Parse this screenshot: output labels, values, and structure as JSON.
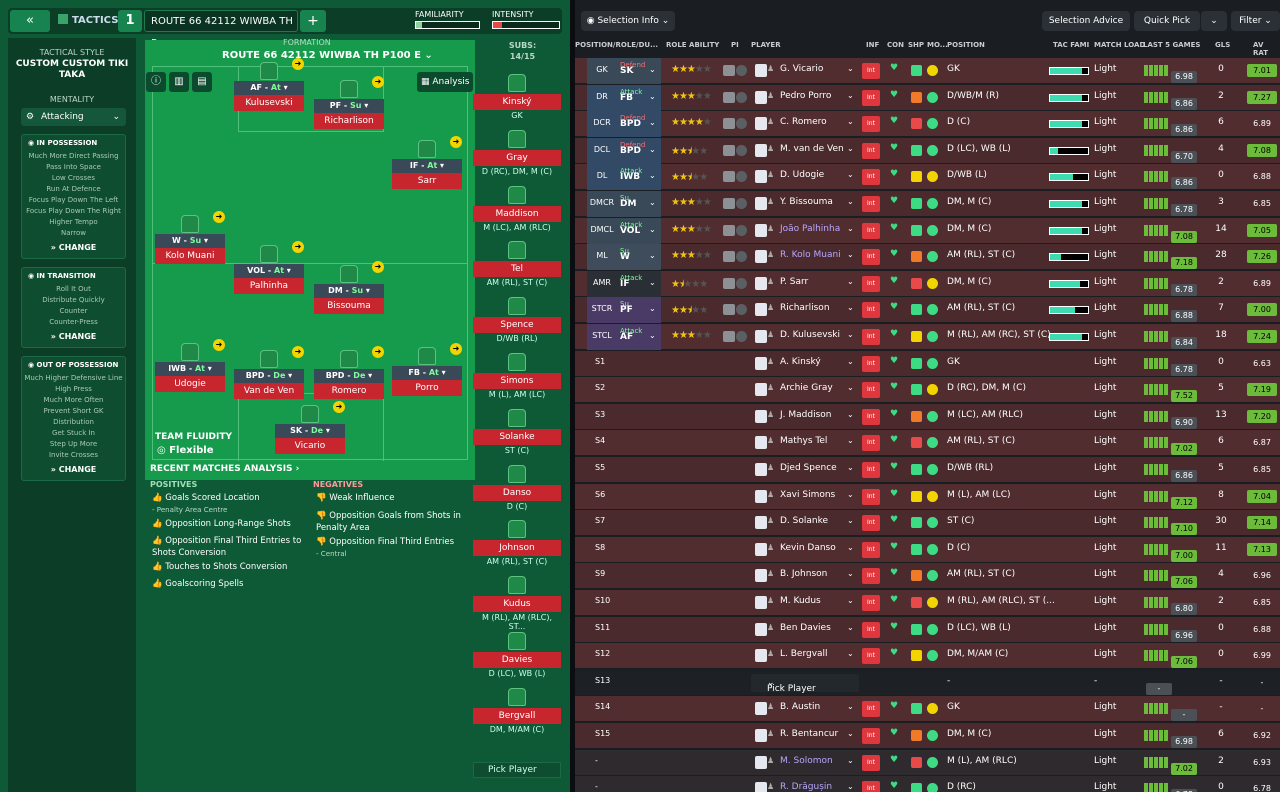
{
  "topbar": {
    "back_icon": "«",
    "tactics_label": "TACTICS",
    "tactic_number": "1",
    "tactic_name": "ROUTE 66 42112 WIWBA TH P...",
    "add_icon": "+",
    "familiarity_label": "FAMILIARITY",
    "familiarity_value": 0.1,
    "intensity_label": "INTENSITY",
    "intensity_value": 0.14
  },
  "sidebar": {
    "style_label": "TACTICAL STYLE",
    "style_name": "CUSTOM CUSTOM TIKI TAKA",
    "mentality_label": "MENTALITY",
    "mentality_value": "Attacking",
    "in_possession": {
      "title": "IN POSSESSION",
      "items": [
        "Much More Direct Passing",
        "Pass Into Space",
        "Low Crosses",
        "Run At Defence",
        "Focus Play Down The Left",
        "Focus Play Down The Right",
        "Higher Tempo",
        "Narrow"
      ],
      "change": "CHANGE"
    },
    "in_transition": {
      "title": "IN TRANSITION",
      "items": [
        "Roll It Out",
        "Distribute Quickly",
        "Counter",
        "Counter-Press"
      ],
      "change": "CHANGE"
    },
    "out_possession": {
      "title": "OUT OF POSSESSION",
      "items": [
        "Much Higher Defensive Line",
        "High Press",
        "Much More Often",
        "Prevent Short GK Distribution",
        "Get Stuck In",
        "Step Up More",
        "Invite Crosses"
      ],
      "change": "CHANGE"
    }
  },
  "formation": {
    "label": "FORMATION",
    "name": "ROUTE 66 42112 WIWBA TH P100 E",
    "analysis": "Analysis",
    "fluidity_label": "TEAM FLUIDITY",
    "fluidity_value": "Flexible"
  },
  "players": [
    {
      "role": "AF",
      "duty": "At",
      "name": "Kulusevski"
    },
    {
      "role": "PF",
      "duty": "Su",
      "name": "Richarlison"
    },
    {
      "role": "IF",
      "duty": "At",
      "name": "Sarr"
    },
    {
      "role": "W",
      "duty": "Su",
      "name": "Kolo Muani"
    },
    {
      "role": "VOL",
      "duty": "At",
      "name": "Palhinha"
    },
    {
      "role": "DM",
      "duty": "Su",
      "name": "Bissouma"
    },
    {
      "role": "IWB",
      "duty": "At",
      "name": "Udogie"
    },
    {
      "role": "BPD",
      "duty": "De",
      "name": "Van de Ven"
    },
    {
      "role": "BPD",
      "duty": "De",
      "name": "Romero"
    },
    {
      "role": "FB",
      "duty": "At",
      "name": "Porro"
    },
    {
      "role": "SK",
      "duty": "De",
      "name": "Vicario"
    }
  ],
  "subs": {
    "label": "SUBS:",
    "count": "14/15",
    "pick": "Pick Player",
    "list": [
      {
        "name": "Kinský",
        "pos": "GK"
      },
      {
        "name": "Gray",
        "pos": "D (RC), DM, M (C)"
      },
      {
        "name": "Maddison",
        "pos": "M (LC), AM (RLC)"
      },
      {
        "name": "Tel",
        "pos": "AM (RL), ST (C)"
      },
      {
        "name": "Spence",
        "pos": "D/WB (RL)"
      },
      {
        "name": "Simons",
        "pos": "M (L), AM (LC)"
      },
      {
        "name": "Solanke",
        "pos": "ST (C)"
      },
      {
        "name": "Danso",
        "pos": "D (C)"
      },
      {
        "name": "Johnson",
        "pos": "AM (RL), ST (C)"
      },
      {
        "name": "Kudus",
        "pos": "M (RL), AM (RLC), ST..."
      },
      {
        "name": "Davies",
        "pos": "D (LC), WB (L)"
      },
      {
        "name": "Bergvall",
        "pos": "DM, M/AM (C)"
      }
    ]
  },
  "analysis": {
    "title": "RECENT MATCHES ANALYSIS",
    "positives_label": "POSITIVES",
    "positives": [
      {
        "t": "Goals Scored Location",
        "s": "- Penalty Area Centre"
      },
      {
        "t": "Opposition Long-Range Shots",
        "s": ""
      },
      {
        "t": "Opposition Final Third Entries to Shots Conversion",
        "s": ""
      },
      {
        "t": "Touches to Shots Conversion",
        "s": ""
      },
      {
        "t": "Goalscoring Spells",
        "s": ""
      }
    ],
    "negatives_label": "NEGATIVES",
    "negatives": [
      {
        "t": "Weak Influence",
        "s": ""
      },
      {
        "t": "Opposition Goals from Shots in Penalty Area",
        "s": ""
      },
      {
        "t": "Opposition Final Third Entries",
        "s": "- Central"
      }
    ]
  },
  "right": {
    "selection_info": "Selection Info",
    "selection_advice": "Selection Advice",
    "quick_pick": "Quick Pick",
    "filter": "Filter"
  },
  "headers": [
    "POSITION/ROLE/DU...",
    "ROLE ABILITY",
    "PI",
    "PLAYER",
    "INF",
    "CON",
    "SHP",
    "MO...",
    "POSITION",
    "TAC FAMI",
    "MATCH LOAD",
    "LAST 5 GAMES",
    "GLS",
    "AV RAT"
  ],
  "rows": [
    {
      "slot": "GK",
      "role": "SK",
      "duty": "Defend",
      "stars": 3,
      "player": "G. Vicario",
      "pos": "GK",
      "load": "Light",
      "rating": "6.98",
      "gls": "0",
      "avr": "7.01",
      "g": false,
      "ag": true,
      "fam": 0.85
    },
    {
      "slot": "DR",
      "role": "FB",
      "duty": "Attack",
      "stars": 3,
      "player": "Pedro Porro",
      "pos": "D/WB/M (R)",
      "load": "Light",
      "rating": "6.86",
      "gls": "2",
      "avr": "7.27",
      "g": false,
      "ag": true,
      "fam": 0.85
    },
    {
      "slot": "DCR",
      "role": "BPD",
      "duty": "Defend",
      "stars": 4,
      "player": "C. Romero",
      "pos": "D (C)",
      "load": "Light",
      "rating": "6.86",
      "gls": "6",
      "avr": "6.89",
      "g": false,
      "ag": false,
      "fam": 0.85
    },
    {
      "slot": "DCL",
      "role": "BPD",
      "duty": "Defend",
      "stars": 2.5,
      "player": "M. van de Ven",
      "pos": "D (LC), WB (L)",
      "load": "Light",
      "rating": "6.70",
      "gls": "4",
      "avr": "7.08",
      "g": false,
      "ag": true,
      "fam": 0.2
    },
    {
      "slot": "DL",
      "role": "IWB",
      "duty": "Attack",
      "stars": 2.5,
      "player": "D. Udogie",
      "pos": "D/WB (L)",
      "load": "Light",
      "rating": "6.86",
      "gls": "0",
      "avr": "6.88",
      "g": false,
      "ag": false,
      "fam": 0.6
    },
    {
      "slot": "DMCR",
      "role": "DM",
      "duty": "Su",
      "stars": 3,
      "player": "Y. Bissouma",
      "pos": "DM, M (C)",
      "load": "Light",
      "rating": "6.78",
      "gls": "3",
      "avr": "6.85",
      "g": false,
      "ag": false,
      "fam": 0.85
    },
    {
      "slot": "DMCL",
      "role": "VOL",
      "duty": "Attack",
      "stars": 3,
      "player": "João Palhinha",
      "pos": "DM, M (C)",
      "load": "Light",
      "rating": "7.08",
      "gls": "14",
      "avr": "7.05",
      "g": true,
      "ag": true,
      "fam": 0.85
    },
    {
      "slot": "ML",
      "role": "W",
      "duty": "Su",
      "stars": 3,
      "player": "R. Kolo Muani",
      "pos": "AM (RL), ST (C)",
      "load": "Light",
      "rating": "7.18",
      "gls": "28",
      "avr": "7.26",
      "g": true,
      "ag": true,
      "fam": 0.3
    },
    {
      "slot": "AMR",
      "role": "IF",
      "duty": "Attack",
      "stars": 1.5,
      "player": "P. Sarr",
      "pos": "DM, M (C)",
      "load": "Light",
      "rating": "6.78",
      "gls": "2",
      "avr": "6.89",
      "g": false,
      "ag": false,
      "fam": 0.8
    },
    {
      "slot": "STCR",
      "role": "PF",
      "duty": "Su",
      "stars": 2.5,
      "player": "Richarlison",
      "pos": "AM (RL), ST (C)",
      "load": "Light",
      "rating": "6.88",
      "gls": "7",
      "avr": "7.00",
      "g": false,
      "ag": true,
      "fam": 0.65
    },
    {
      "slot": "STCL",
      "role": "AF",
      "duty": "Attack",
      "stars": 3,
      "player": "D. Kulusevski",
      "pos": "M (RL), AM (RC), ST (C)",
      "load": "Light",
      "rating": "6.84",
      "gls": "18",
      "avr": "7.24",
      "g": false,
      "ag": true,
      "fam": 0.85
    },
    {
      "slot": "S1",
      "player": "A. Kinský",
      "pos": "GK",
      "load": "Light",
      "rating": "6.78",
      "gls": "0",
      "avr": "6.63",
      "g": false,
      "ag": false
    },
    {
      "slot": "S2",
      "player": "Archie Gray",
      "pos": "D (RC), DM, M (C)",
      "load": "Light",
      "rating": "7.52",
      "gls": "5",
      "avr": "7.19",
      "g": true,
      "ag": true
    },
    {
      "slot": "S3",
      "player": "J. Maddison",
      "pos": "M (LC), AM (RLC)",
      "load": "Light",
      "rating": "6.90",
      "gls": "13",
      "avr": "7.20",
      "g": false,
      "ag": true
    },
    {
      "slot": "S4",
      "player": "Mathys Tel",
      "pos": "AM (RL), ST (C)",
      "load": "Light",
      "rating": "7.02",
      "gls": "6",
      "avr": "6.87",
      "g": true,
      "ag": false
    },
    {
      "slot": "S5",
      "player": "Djed Spence",
      "pos": "D/WB (RL)",
      "load": "Light",
      "rating": "6.86",
      "gls": "5",
      "avr": "6.85",
      "g": false,
      "ag": false
    },
    {
      "slot": "S6",
      "player": "Xavi Simons",
      "pos": "M (L), AM (LC)",
      "load": "Light",
      "rating": "7.12",
      "gls": "8",
      "avr": "7.04",
      "g": true,
      "ag": true
    },
    {
      "slot": "S7",
      "player": "D. Solanke",
      "pos": "ST (C)",
      "load": "Light",
      "rating": "7.10",
      "gls": "30",
      "avr": "7.14",
      "g": true,
      "ag": true
    },
    {
      "slot": "S8",
      "player": "Kevin Danso",
      "pos": "D (C)",
      "load": "Light",
      "rating": "7.00",
      "gls": "11",
      "avr": "7.13",
      "g": true,
      "ag": true
    },
    {
      "slot": "S9",
      "player": "B. Johnson",
      "pos": "AM (RL), ST (C)",
      "load": "Light",
      "rating": "7.06",
      "gls": "4",
      "avr": "6.96",
      "g": true,
      "ag": false
    },
    {
      "slot": "S10",
      "player": "M. Kudus",
      "pos": "M (RL), AM (RLC), ST (...",
      "load": "Light",
      "rating": "6.80",
      "gls": "2",
      "avr": "6.85",
      "g": false,
      "ag": false
    },
    {
      "slot": "S11",
      "player": "Ben Davies",
      "pos": "D (LC), WB (L)",
      "load": "Light",
      "rating": "6.96",
      "gls": "0",
      "avr": "6.88",
      "g": false,
      "ag": false
    },
    {
      "slot": "S12",
      "player": "L. Bergvall",
      "pos": "DM, M/AM (C)",
      "load": "Light",
      "rating": "7.06",
      "gls": "0",
      "avr": "6.99",
      "g": true,
      "ag": false
    },
    {
      "slot": "S13",
      "player": "Pick Player",
      "pos": "-",
      "load": "-",
      "rating": "-",
      "gls": "-",
      "avr": "-",
      "g": false,
      "ag": false,
      "empty": true
    },
    {
      "slot": "S14",
      "player": "B. Austin",
      "pos": "GK",
      "load": "Light",
      "rating": "-",
      "gls": "-",
      "avr": "-",
      "g": false,
      "ag": false
    },
    {
      "slot": "S15",
      "player": "R. Bentancur",
      "pos": "DM, M (C)",
      "load": "Light",
      "rating": "6.98",
      "gls": "6",
      "avr": "6.92",
      "g": false,
      "ag": false
    },
    {
      "slot": "-",
      "player": "M. Solomon",
      "pos": "M (L), AM (RLC)",
      "load": "Light",
      "rating": "7.02",
      "gls": "2",
      "avr": "6.93",
      "g": true,
      "ag": false,
      "dim": true
    },
    {
      "slot": "-",
      "player": "R. Drăgușin",
      "pos": "D (RC)",
      "load": "Light",
      "rating": "6.78",
      "gls": "0",
      "avr": "6.78",
      "g": false,
      "ag": false,
      "dim": true
    }
  ]
}
